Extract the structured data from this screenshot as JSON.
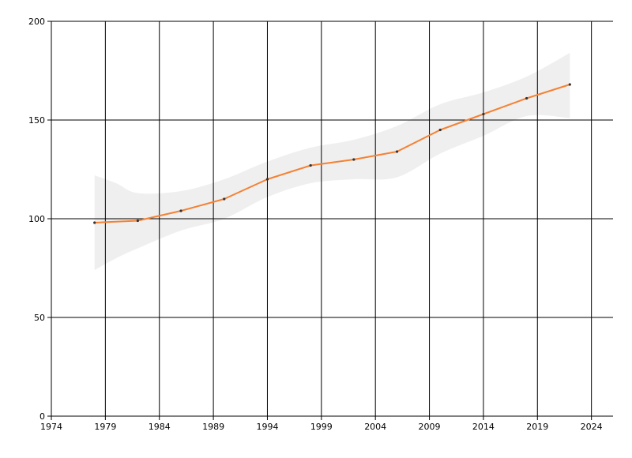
{
  "chart_data": {
    "type": "line",
    "title": "",
    "xlabel": "",
    "ylabel": "",
    "x": [
      1978,
      1982,
      1986,
      1990,
      1994,
      1998,
      2002,
      2006,
      2010,
      2014,
      2018,
      2022
    ],
    "series": [
      {
        "values": [
          98,
          99,
          104,
          110,
          120,
          127,
          130,
          134,
          145,
          153,
          161,
          168
        ],
        "color": "#f58133"
      }
    ],
    "band": {
      "x": [
        1978,
        1980,
        1982,
        1986,
        1990,
        1994,
        1998,
        2002,
        2006,
        2010,
        2014,
        2018,
        2022
      ],
      "upper": [
        122,
        118,
        113,
        114,
        120,
        129,
        136,
        140,
        147,
        158,
        164,
        172,
        184
      ],
      "lower": [
        74,
        80,
        85,
        94,
        100,
        111,
        118,
        120,
        121,
        133,
        142,
        152,
        151
      ],
      "color": "#efefef"
    },
    "xlim": [
      1974,
      2026
    ],
    "ylim": [
      0,
      200
    ],
    "xticks": [
      1974,
      1979,
      1984,
      1989,
      1994,
      1999,
      2004,
      2009,
      2014,
      2019,
      2024
    ],
    "yticks": [
      0,
      50,
      100,
      150,
      200
    ],
    "grid": true,
    "legend": "none"
  }
}
